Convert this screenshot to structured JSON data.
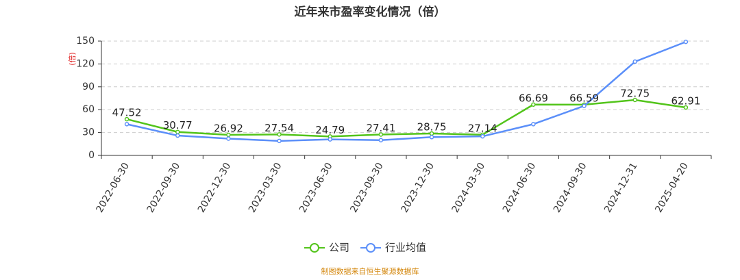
{
  "chart_data": {
    "type": "line",
    "title": "近年来市盈率变化情况（倍）",
    "y_label": "(倍)",
    "categories": [
      "2022-06-30",
      "2022-09-30",
      "2022-12-30",
      "2023-03-30",
      "2023-06-30",
      "2023-09-30",
      "2023-12-30",
      "2024-03-30",
      "2024-06-30",
      "2024-09-30",
      "2024-12-31",
      "2025-04-20"
    ],
    "series": [
      {
        "name": "公司",
        "color": "#52c41a",
        "values": [
          47.52,
          30.77,
          26.92,
          27.54,
          24.79,
          27.41,
          28.75,
          27.14,
          66.69,
          66.59,
          72.75,
          62.91
        ]
      },
      {
        "name": "行业均值",
        "color": "#5b8ff9",
        "values": [
          41,
          26,
          22,
          19,
          21,
          20,
          24,
          25,
          41,
          65,
          123,
          149
        ]
      }
    ],
    "ylim": [
      0,
      150
    ],
    "yticks": [
      0,
      30,
      60,
      90,
      120,
      150
    ],
    "grid": true,
    "source": "制图数据来自恒生聚源数据库"
  }
}
